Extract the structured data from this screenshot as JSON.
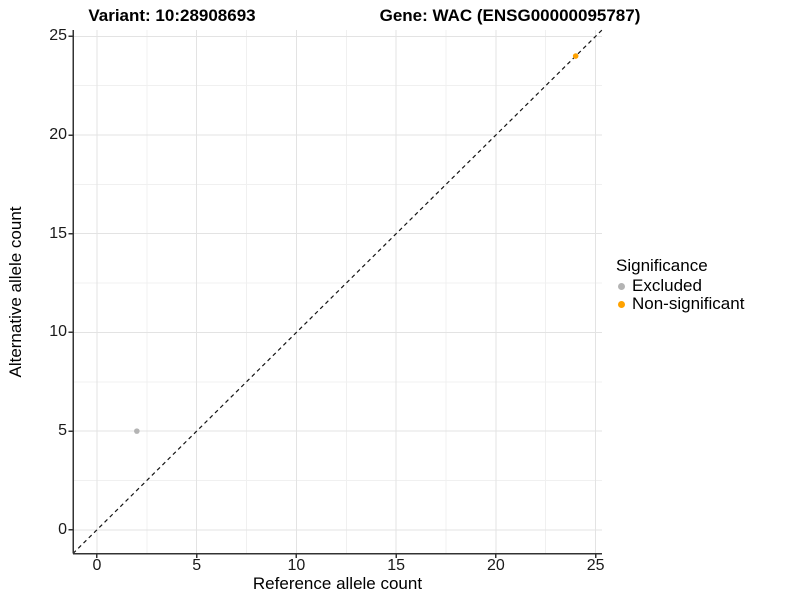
{
  "chart_data": {
    "type": "scatter",
    "title_left": "Variant: 10:28908693",
    "title_right": "Gene: WAC (ENSG00000095787)",
    "xlabel": "Reference allele count",
    "ylabel": "Alternative allele count",
    "xlim": [
      -1.2,
      25.32
    ],
    "ylim": [
      -1.2,
      25.32
    ],
    "x_ticks": [
      0,
      5,
      10,
      15,
      20,
      25
    ],
    "y_ticks": [
      0,
      5,
      10,
      15,
      20,
      25
    ],
    "x_minor_ticks": [
      2.5,
      7.5,
      12.5,
      17.5,
      22.5
    ],
    "y_minor_ticks": [
      2.5,
      7.5,
      12.5,
      17.5,
      22.5
    ],
    "grid": "major-and-minor",
    "identity_line": {
      "style": "dashed",
      "slope": 1,
      "intercept": 0
    },
    "series": [
      {
        "name": "Excluded",
        "color": "#b4b4b4",
        "points": [
          {
            "x": 2,
            "y": 5
          }
        ]
      },
      {
        "name": "Non-significant",
        "color": "#ffa200",
        "points": [
          {
            "x": 24,
            "y": 24
          }
        ]
      }
    ],
    "legend": {
      "title": "Significance",
      "position": "right",
      "items": [
        {
          "label": "Excluded",
          "color": "#b4b4b4"
        },
        {
          "label": "Non-significant",
          "color": "#ffa200"
        }
      ]
    }
  },
  "colors": {
    "background": "#ffffff",
    "axis_line": "#333333",
    "tick_mark": "#333333",
    "grid_major": "#e3e3e3",
    "grid_minor": "#f0f0f0",
    "identity_line": "#141414"
  }
}
